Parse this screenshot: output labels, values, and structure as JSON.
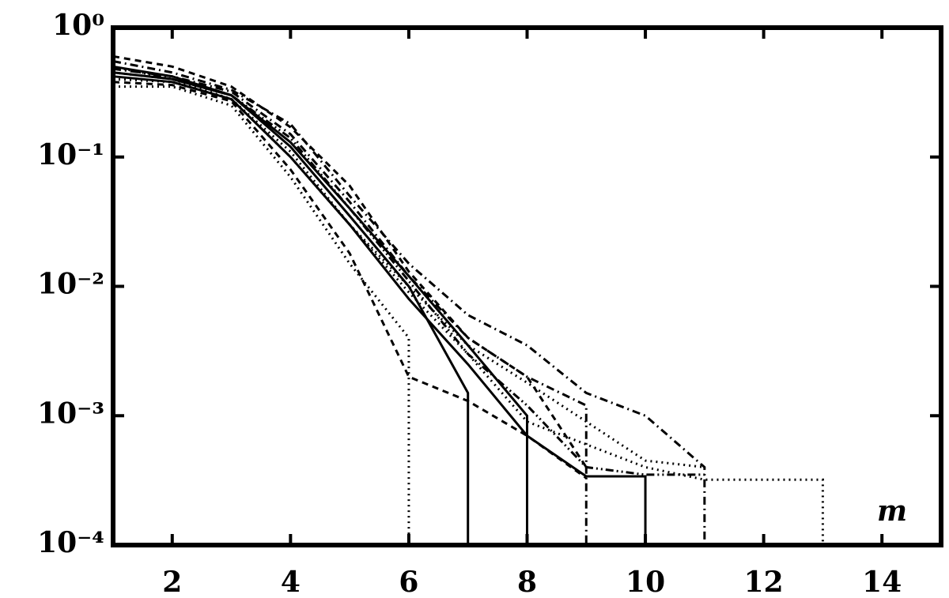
{
  "chart_data": {
    "type": "line",
    "annotation": "m",
    "ylog": true,
    "xlim": [
      1,
      15
    ],
    "ylim": [
      0.0001,
      1
    ],
    "xticks": [
      2,
      4,
      6,
      8,
      10,
      12,
      14
    ],
    "yticks": [
      {
        "value": 0.0001,
        "label": "10⁻⁴"
      },
      {
        "value": 0.001,
        "label": "10⁻³"
      },
      {
        "value": 0.01,
        "label": "10⁻²"
      },
      {
        "value": 0.1,
        "label": "10⁻¹"
      },
      {
        "value": 1,
        "label": "10⁰"
      }
    ],
    "series": [
      {
        "color": "#000000",
        "linestyle": "solid",
        "x": [
          1,
          2,
          3,
          4,
          5,
          6,
          7,
          7
        ],
        "values": [
          0.45,
          0.4,
          0.3,
          0.12,
          0.035,
          0.01,
          0.0015,
          0.0001
        ]
      },
      {
        "color": "#000000",
        "linestyle": "solid",
        "x": [
          1,
          2,
          3,
          4,
          5,
          6,
          7,
          8,
          8
        ],
        "values": [
          0.5,
          0.42,
          0.3,
          0.13,
          0.04,
          0.012,
          0.0035,
          0.001,
          0.0001
        ]
      },
      {
        "color": "#000000",
        "linestyle": "solid",
        "x": [
          1,
          2,
          3,
          4,
          5,
          6,
          7,
          8,
          9,
          10,
          10
        ],
        "values": [
          0.42,
          0.38,
          0.28,
          0.1,
          0.03,
          0.008,
          0.0025,
          0.0007,
          0.00034,
          0.00034,
          0.0001
        ]
      },
      {
        "color": "#000000",
        "linestyle": "dotted",
        "x": [
          1,
          2,
          3,
          4,
          5,
          6,
          6
        ],
        "values": [
          0.35,
          0.35,
          0.25,
          0.07,
          0.015,
          0.004,
          0.0001
        ]
      },
      {
        "color": "#000000",
        "linestyle": "dashed",
        "x": [
          1,
          2,
          3,
          4,
          5,
          6,
          7,
          8,
          9
        ],
        "values": [
          0.38,
          0.36,
          0.27,
          0.08,
          0.018,
          0.002,
          0.0013,
          0.0007,
          0.00033
        ]
      },
      {
        "color": "#000000",
        "linestyle": "dashdot",
        "x": [
          1,
          2,
          3,
          4,
          5,
          6,
          7,
          8,
          9,
          10,
          11,
          11
        ],
        "values": [
          0.55,
          0.45,
          0.33,
          0.18,
          0.05,
          0.015,
          0.006,
          0.0035,
          0.0015,
          0.001,
          0.0004,
          0.0001
        ]
      },
      {
        "color": "#000000",
        "linestyle": "dotted",
        "x": [
          1,
          2,
          3,
          4,
          5,
          6,
          7,
          8,
          9,
          10,
          11,
          12,
          13,
          13
        ],
        "values": [
          0.4,
          0.38,
          0.28,
          0.1,
          0.03,
          0.009,
          0.003,
          0.0009,
          0.0006,
          0.0004,
          0.00032,
          0.00032,
          0.00032,
          0.0001
        ]
      },
      {
        "color": "#000000",
        "linestyle": "dashdot",
        "x": [
          1,
          2,
          3,
          4,
          5,
          6,
          7,
          8,
          9,
          9
        ],
        "values": [
          0.48,
          0.42,
          0.32,
          0.15,
          0.045,
          0.012,
          0.004,
          0.002,
          0.0012,
          0.0001
        ]
      },
      {
        "color": "#000000",
        "linestyle": "dashed",
        "x": [
          1,
          2,
          3,
          4,
          5,
          6,
          7,
          8,
          9
        ],
        "values": [
          0.6,
          0.5,
          0.35,
          0.17,
          0.06,
          0.013,
          0.004,
          0.002,
          0.0004
        ]
      },
      {
        "color": "#000000",
        "linestyle": "dashdotdot",
        "x": [
          1,
          2,
          3,
          4,
          5,
          6,
          7,
          8,
          9,
          10,
          11
        ],
        "values": [
          0.5,
          0.4,
          0.3,
          0.14,
          0.04,
          0.011,
          0.003,
          0.0012,
          0.0004,
          0.00035,
          0.00035
        ]
      },
      {
        "color": "#000000",
        "linestyle": "dotted",
        "x": [
          1,
          2,
          3,
          4,
          5,
          6,
          7,
          8,
          9,
          10,
          11
        ],
        "values": [
          0.45,
          0.4,
          0.28,
          0.11,
          0.03,
          0.01,
          0.0035,
          0.0018,
          0.0009,
          0.00045,
          0.0004
        ]
      }
    ]
  }
}
